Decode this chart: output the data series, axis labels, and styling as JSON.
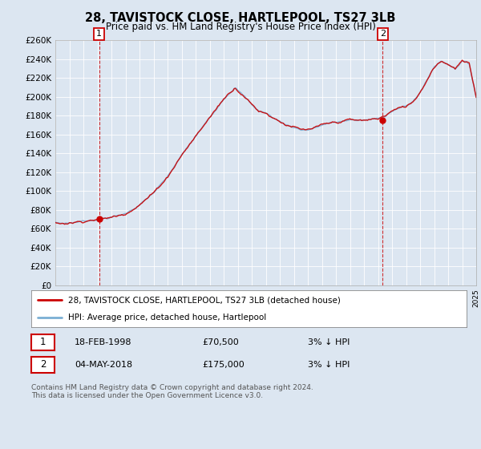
{
  "title": "28, TAVISTOCK CLOSE, HARTLEPOOL, TS27 3LB",
  "subtitle": "Price paid vs. HM Land Registry's House Price Index (HPI)",
  "background_color": "#dce6f1",
  "hpi_color": "#7bafd4",
  "price_color": "#cc0000",
  "marker1_date": 1998.12,
  "marker1_price": 70500,
  "marker2_date": 2018.34,
  "marker2_price": 175000,
  "ymin": 0,
  "ymax": 260000,
  "xmin": 1995,
  "xmax": 2025,
  "yticks": [
    0,
    20000,
    40000,
    60000,
    80000,
    100000,
    120000,
    140000,
    160000,
    180000,
    200000,
    220000,
    240000,
    260000
  ],
  "ytick_labels": [
    "£0",
    "£20K",
    "£40K",
    "£60K",
    "£80K",
    "£100K",
    "£120K",
    "£140K",
    "£160K",
    "£180K",
    "£200K",
    "£220K",
    "£240K",
    "£260K"
  ],
  "legend_line1": "28, TAVISTOCK CLOSE, HARTLEPOOL, TS27 3LB (detached house)",
  "legend_line2": "HPI: Average price, detached house, Hartlepool",
  "footnote_line1": "Contains HM Land Registry data © Crown copyright and database right 2024.",
  "footnote_line2": "This data is licensed under the Open Government Licence v3.0.",
  "table_row1_num": "1",
  "table_row1_date": "18-FEB-1998",
  "table_row1_price": "£70,500",
  "table_row1_hpi": "3% ↓ HPI",
  "table_row2_num": "2",
  "table_row2_date": "04-MAY-2018",
  "table_row2_price": "£175,000",
  "table_row2_hpi": "3% ↓ HPI"
}
